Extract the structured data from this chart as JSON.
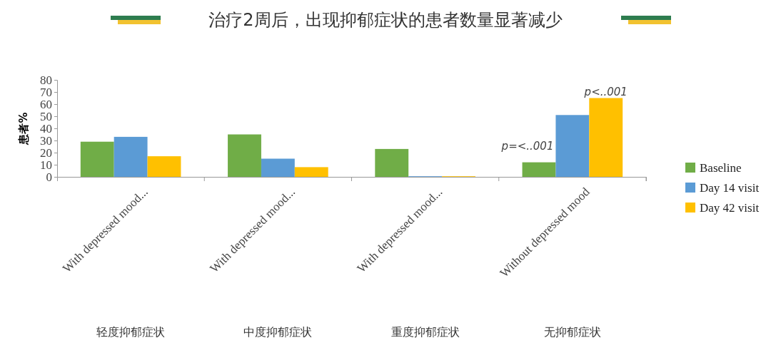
{
  "chart_data": {
    "type": "bar",
    "title": "治疗2周后，出现抑郁症状的患者数量显著减少",
    "ylabel": "患者%",
    "categories": [
      "With depressed mood...\n轻度抑郁症状",
      "With depressed mood...\n中度抑郁症状",
      "With depressed mood...\n重度抑郁症状",
      "Without depressed mood\n无抑郁症状"
    ],
    "series": [
      {
        "name": "Baseline",
        "color": "#70ad47",
        "values": [
          29,
          35,
          23,
          12
        ]
      },
      {
        "name": "Day 14 visit",
        "color": "#5b9bd5",
        "values": [
          33,
          15,
          0.5,
          51
        ]
      },
      {
        "name": "Day 42 visit",
        "color": "#ffc000",
        "values": [
          17,
          8,
          0.5,
          65
        ]
      }
    ],
    "ylim": [
      0,
      80
    ],
    "yticks": [
      0,
      10,
      20,
      30,
      40,
      50,
      60,
      70,
      80
    ],
    "grid": false,
    "legend": "right",
    "annotations": [
      "p=<..001",
      "p<..001"
    ]
  }
}
